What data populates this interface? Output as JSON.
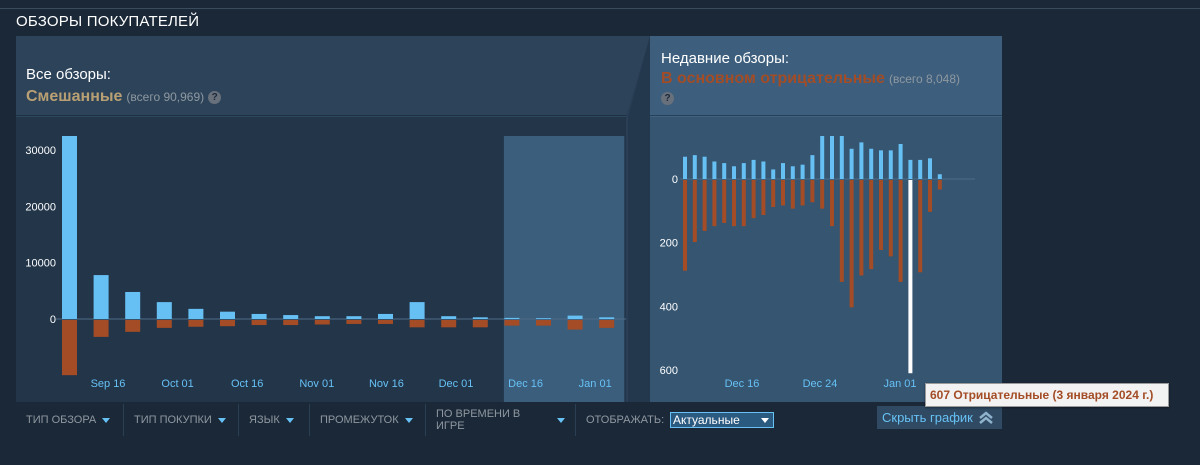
{
  "section_title": "ОБЗОРЫ ПОКУПАТЕЛЕЙ",
  "all_reviews": {
    "label": "Все обзоры:",
    "rating": "Смешанные",
    "total": "(всего 90,969)",
    "help": "?",
    "rating_color": "#b9a074"
  },
  "recent_reviews": {
    "label": "Недавние обзоры:",
    "rating": "В основном отрицательные",
    "total": "(всего 8,048)",
    "help": "?",
    "rating_color": "#a34c25"
  },
  "chart_data": [
    {
      "type": "bar",
      "title": "",
      "y_ticks": [
        "30000",
        "20000",
        "10000",
        "0"
      ],
      "x_tick_labels": [
        "Sep 16",
        "Oct 01",
        "Oct 16",
        "Nov 01",
        "Nov 16",
        "Dec 01",
        "Dec 16",
        "Jan 01"
      ],
      "ylim": [
        -10000,
        33000
      ],
      "series": [
        {
          "name": "",
          "color": "#66c0f4",
          "values": [
            32500,
            7800,
            4800,
            3000,
            1800,
            1300,
            900,
            700,
            500,
            500,
            900,
            3000,
            500,
            300,
            200,
            150,
            600,
            300
          ]
        },
        {
          "name": "",
          "color": "#a34c25",
          "values": [
            -9800,
            -3000,
            -2100,
            -1400,
            -1200,
            -1100,
            -900,
            -900,
            -800,
            -700,
            -700,
            -1300,
            -1300,
            -1300,
            -1000,
            -1000,
            -1700,
            -1400
          ]
        }
      ],
      "highlight_range": [
        14,
        18
      ]
    },
    {
      "type": "bar",
      "title": "",
      "y_ticks": [
        "0",
        "200",
        "400",
        "600"
      ],
      "x_tick_labels": [
        "Dec 16",
        "Dec 24",
        "Jan 01"
      ],
      "ylim": [
        -600,
        150
      ],
      "series": [
        {
          "name": "",
          "color": "#66c0f4",
          "values": [
            70,
            75,
            70,
            55,
            50,
            40,
            50,
            60,
            55,
            30,
            50,
            40,
            45,
            75,
            135,
            135,
            135,
            95,
            115,
            95,
            90,
            90,
            110,
            60,
            60,
            65,
            15
          ]
        },
        {
          "name": "",
          "color": "#a34c25",
          "values": [
            -285,
            -195,
            -160,
            -145,
            -135,
            -145,
            -145,
            -120,
            -110,
            -85,
            -80,
            -90,
            -80,
            -70,
            -90,
            -145,
            -320,
            -400,
            -300,
            -280,
            -220,
            -240,
            -320,
            -607,
            -290,
            -100,
            -30
          ]
        }
      ],
      "selected_index": 23
    }
  ],
  "tooltip": "607 Отрицательные (3 января 2024 г.)",
  "filters": [
    {
      "label": "ТИП ОБЗОРА"
    },
    {
      "label": "ТИП ПОКУПКИ"
    },
    {
      "label": "ЯЗЫК"
    },
    {
      "label": "ПРОМЕЖУТОК"
    },
    {
      "label": "ПО ВРЕМЕНИ В ИГРЕ"
    }
  ],
  "display": {
    "label": "ОТОБРАЖАТЬ:",
    "selected": "Актуальные"
  },
  "hide_graph_label": "Скрыть график"
}
